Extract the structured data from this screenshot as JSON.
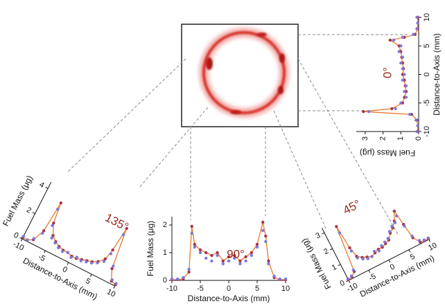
{
  "chart_data": [
    {
      "type": "line",
      "annotation": "0°",
      "xlabel": "Distance-to-Axis (mm)",
      "ylabel": "Fuel Mass (μg)",
      "x": [
        -10,
        -9,
        -8,
        -7,
        -6.5,
        -6,
        -5,
        -4,
        -3,
        -2,
        -1,
        0,
        1,
        2,
        3,
        4,
        5,
        6,
        6.5,
        7,
        8,
        9,
        10
      ],
      "xlim": [
        -10,
        10
      ],
      "xticks": [
        -10,
        -5,
        0,
        5,
        10
      ],
      "ylim": [
        0,
        3.5
      ],
      "yticks": [
        0,
        1,
        2,
        3
      ],
      "series": [
        {
          "color": "#e8823a",
          "marker_color": "#a8324a",
          "line": true,
          "values": [
            0.05,
            0.05,
            0.1,
            0.4,
            3.1,
            1.5,
            0.9,
            0.8,
            0.7,
            0.75,
            0.8,
            0.9,
            0.85,
            0.9,
            0.95,
            1.0,
            1.1,
            1.6,
            0.8,
            0.2,
            0.05,
            0.05,
            0.05
          ]
        },
        {
          "color": "#7b78d8",
          "marker_color": "#7b78d8",
          "line": false,
          "values": [
            0.1,
            0.05,
            0.15,
            0.5,
            2.8,
            1.3,
            1.0,
            0.7,
            0.8,
            0.7,
            0.9,
            0.8,
            0.9,
            1.0,
            0.9,
            1.1,
            1.0,
            1.4,
            0.9,
            0.3,
            0.1,
            0.05,
            0.1
          ]
        }
      ]
    },
    {
      "type": "line",
      "annotation": "45°",
      "xlabel": "Distance-to-Axis (mm)",
      "ylabel": "Fuel Mass (μg)",
      "x": [
        -10,
        -9,
        -8,
        -7,
        -6.5,
        -6,
        -5,
        -4,
        -3,
        -2,
        -1,
        0,
        1,
        2,
        3,
        4,
        5,
        6,
        6.5,
        7,
        8,
        9,
        10
      ],
      "xlim": [
        -10,
        10
      ],
      "xticks": [
        -10,
        -5,
        0,
        5,
        10
      ],
      "ylim": [
        0,
        3.3
      ],
      "yticks": [
        0,
        1,
        2,
        3
      ],
      "series": [
        {
          "color": "#e8823a",
          "marker_color": "#a8324a",
          "line": true,
          "values": [
            0.05,
            0.1,
            0.3,
            3.0,
            1.6,
            1.0,
            0.8,
            0.7,
            0.6,
            0.7,
            0.8,
            0.8,
            0.9,
            1.0,
            1.3,
            1.5,
            1.8,
            2.3,
            1.4,
            0.5,
            0.1,
            0.05,
            0.05
          ]
        },
        {
          "color": "#7b78d8",
          "marker_color": "#7b78d8",
          "line": false,
          "values": [
            0.1,
            0.15,
            0.4,
            2.6,
            1.4,
            0.9,
            0.7,
            0.6,
            0.6,
            0.8,
            0.7,
            0.9,
            1.0,
            1.1,
            1.4,
            1.6,
            1.7,
            2.0,
            1.3,
            0.6,
            0.2,
            0.1,
            0.1
          ]
        }
      ]
    },
    {
      "type": "line",
      "annotation": "90°",
      "xlabel": "Distance-to-Axis (mm)",
      "ylabel": "Fuel Mass (μg)",
      "x": [
        -10,
        -9,
        -8,
        -7,
        -6.5,
        -6,
        -5,
        -4,
        -3,
        -2,
        -1,
        0,
        1,
        2,
        3,
        4,
        5,
        6,
        6.5,
        7,
        8,
        9,
        10
      ],
      "xlim": [
        -10,
        10
      ],
      "xticks": [
        -10,
        -5,
        0,
        5,
        10
      ],
      "ylim": [
        0,
        2.3
      ],
      "yticks": [
        0,
        1,
        2
      ],
      "series": [
        {
          "color": "#e8823a",
          "marker_color": "#a8324a",
          "line": true,
          "values": [
            0.02,
            0.03,
            0.05,
            0.3,
            1.95,
            1.3,
            1.1,
            1.0,
            0.9,
            1.0,
            0.7,
            0.85,
            0.9,
            0.7,
            0.85,
            1.0,
            1.3,
            2.1,
            1.6,
            0.7,
            0.1,
            0.03,
            0.02
          ]
        },
        {
          "color": "#7b78d8",
          "marker_color": "#7b78d8",
          "line": false,
          "values": [
            0.05,
            0.05,
            0.1,
            0.4,
            1.7,
            1.2,
            1.0,
            0.8,
            0.7,
            0.9,
            0.6,
            0.7,
            0.8,
            0.6,
            0.7,
            0.9,
            1.2,
            1.8,
            1.4,
            0.6,
            0.15,
            0.05,
            0.05
          ]
        }
      ]
    },
    {
      "type": "line",
      "annotation": "135°",
      "xlabel": "Distance-to-Axis (mm)",
      "ylabel": "Fuel Mass (μg)",
      "x": [
        -10,
        -9,
        -8,
        -7,
        -6.5,
        -6,
        -5,
        -4,
        -3,
        -2,
        -1,
        0,
        1,
        2,
        3,
        4,
        5,
        6,
        6.5,
        7,
        8,
        9,
        10
      ],
      "xlim": [
        -10,
        10
      ],
      "xticks": [
        -10,
        -5,
        0,
        5,
        10
      ],
      "ylim": [
        0,
        4.5
      ],
      "yticks": [
        0,
        2,
        4
      ],
      "series": [
        {
          "color": "#e8823a",
          "marker_color": "#a8324a",
          "line": true,
          "values": [
            0.1,
            0.1,
            0.3,
            1.2,
            3.5,
            2.0,
            1.2,
            0.9,
            0.7,
            0.6,
            0.6,
            0.5,
            0.5,
            0.6,
            0.7,
            0.8,
            1.0,
            1.4,
            2.2,
            4.0,
            1.0,
            0.2,
            0.1
          ]
        },
        {
          "color": "#7b78d8",
          "marker_color": "#7b78d8",
          "line": false,
          "values": [
            0.2,
            0.1,
            0.4,
            1.0,
            3.0,
            1.8,
            1.0,
            0.8,
            0.6,
            0.5,
            0.6,
            0.4,
            0.6,
            0.5,
            0.6,
            0.7,
            0.9,
            1.2,
            1.9,
            3.5,
            1.2,
            0.3,
            0.2
          ]
        }
      ]
    }
  ]
}
